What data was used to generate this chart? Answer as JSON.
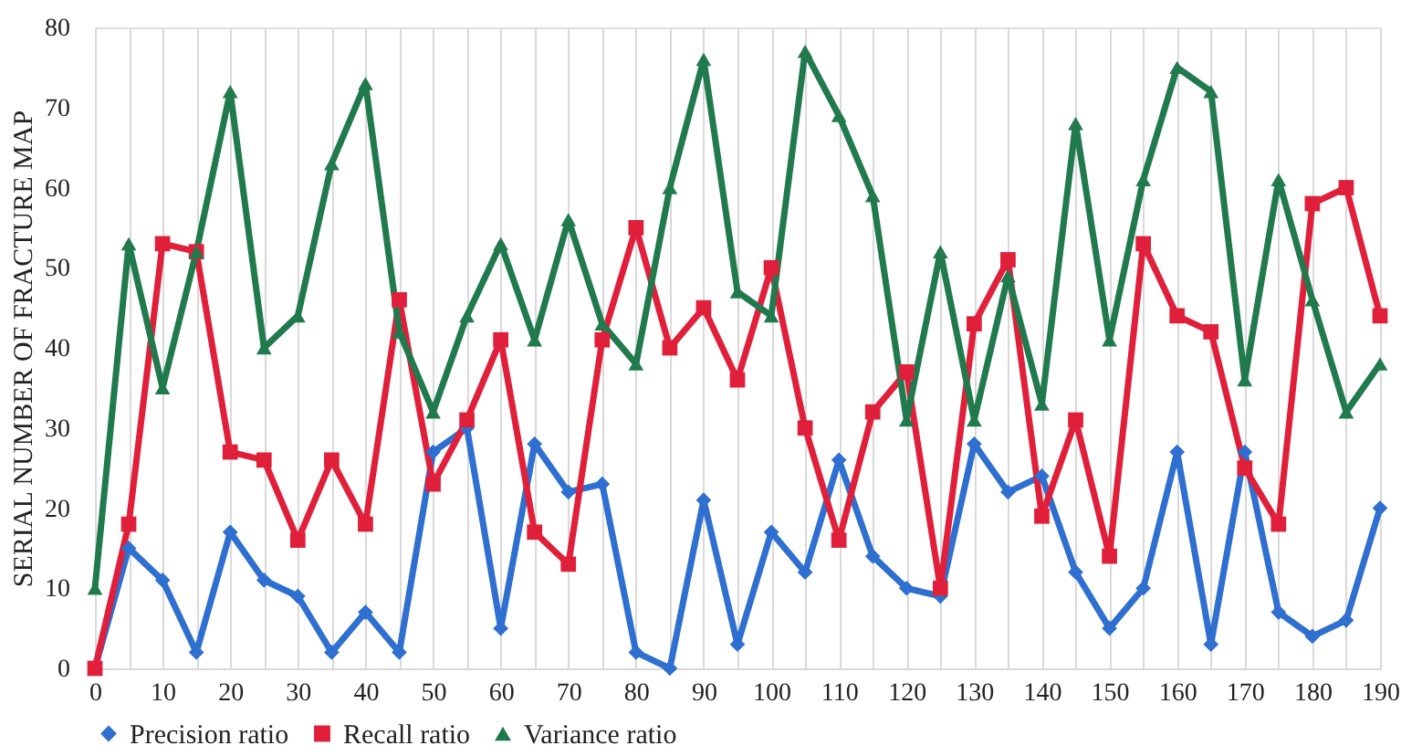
{
  "chart_data": {
    "type": "line",
    "ylabel": "SERIAL NUMBER OF FRACTURE MAP",
    "x": [
      0,
      5,
      10,
      15,
      20,
      25,
      30,
      35,
      40,
      45,
      50,
      55,
      60,
      65,
      70,
      75,
      80,
      85,
      90,
      95,
      100,
      105,
      110,
      115,
      120,
      125,
      130,
      135,
      140,
      145,
      150,
      155,
      160,
      165,
      170,
      175,
      180,
      185,
      190
    ],
    "series": [
      {
        "name": "Precision ratio",
        "color": "#2e6fd0",
        "marker": "diamond",
        "values": [
          0,
          15,
          11,
          2,
          17,
          11,
          9,
          2,
          7,
          2,
          27,
          30,
          5,
          28,
          22,
          23,
          2,
          0,
          21,
          3,
          17,
          12,
          26,
          14,
          10,
          9,
          28,
          22,
          24,
          12,
          5,
          10,
          27,
          3,
          27,
          7,
          4,
          6,
          20
        ]
      },
      {
        "name": "Recall ratio",
        "color": "#e0203a",
        "marker": "square",
        "values": [
          0,
          18,
          53,
          52,
          27,
          26,
          16,
          26,
          18,
          46,
          23,
          31,
          41,
          17,
          13,
          41,
          55,
          40,
          45,
          36,
          50,
          30,
          16,
          32,
          37,
          10,
          43,
          51,
          19,
          31,
          14,
          53,
          44,
          42,
          25,
          18,
          58,
          60,
          44
        ]
      },
      {
        "name": "Variance ratio",
        "color": "#217a4e",
        "marker": "triangle",
        "values": [
          10,
          53,
          35,
          52,
          72,
          40,
          44,
          63,
          73,
          42,
          32,
          44,
          53,
          41,
          56,
          43,
          38,
          60,
          76,
          47,
          44,
          77,
          69,
          59,
          31,
          52,
          31,
          49,
          33,
          68,
          41,
          61,
          75,
          72,
          36,
          61,
          46,
          32,
          38
        ]
      }
    ],
    "xlim": [
      0,
      190
    ],
    "xticks": [
      0,
      {
        "value": 5,
        "label": null
      },
      10,
      {
        "value": 15,
        "label": null
      },
      20,
      {
        "value": 25,
        "label": null
      },
      30,
      {
        "value": 35,
        "label": null
      },
      40,
      {
        "value": 45,
        "label": null
      },
      50,
      {
        "value": 55,
        "label": null
      },
      60,
      {
        "value": 65,
        "label": null
      },
      70,
      {
        "value": 75,
        "label": null
      },
      80,
      {
        "value": 85,
        "label": null
      },
      90,
      {
        "value": 95,
        "label": null
      },
      100,
      {
        "value": 105,
        "label": null
      },
      110,
      {
        "value": 115,
        "label": null
      },
      120,
      {
        "value": 125,
        "label": null
      },
      130,
      {
        "value": 135,
        "label": null
      },
      140,
      {
        "value": 145,
        "label": null
      },
      150,
      {
        "value": 155,
        "label": null
      },
      160,
      {
        "value": 165,
        "label": null
      },
      170,
      {
        "value": 175,
        "label": null
      },
      180,
      {
        "value": 185,
        "label": null
      },
      190
    ],
    "ylim": [
      0,
      80
    ],
    "yticks": [
      0,
      10,
      20,
      30,
      40,
      50,
      60,
      70,
      80
    ],
    "grid": "x",
    "legend": "bottom",
    "line_style": "solid"
  }
}
